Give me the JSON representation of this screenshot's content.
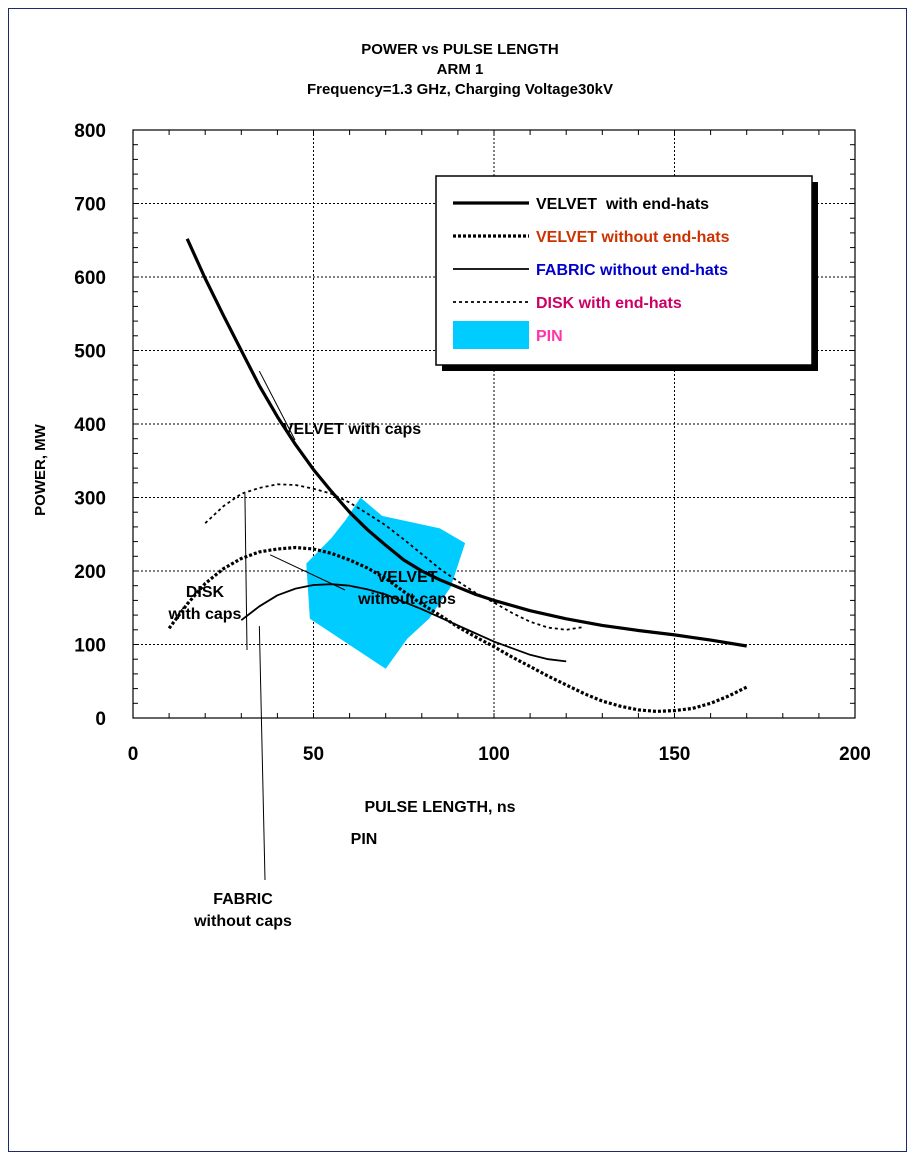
{
  "chart_data": {
    "type": "line",
    "title_lines": [
      "POWER vs PULSE LENGTH",
      "ARM 1",
      "Frequency=1.3 GHz, Charging Voltage30kV"
    ],
    "xlabel": "PULSE LENGTH, ns",
    "ylabel": "POWER, MW",
    "xlim": [
      0,
      200
    ],
    "ylim": [
      0,
      800
    ],
    "xticks": [
      "0",
      "50",
      "100",
      "150",
      "200"
    ],
    "yticks": [
      "0",
      "100",
      "200",
      "300",
      "400",
      "500",
      "600",
      "700",
      "800"
    ],
    "grid": true,
    "legend_position": "top-right",
    "legend": [
      {
        "label": "VELVET  with end-hats",
        "color": "#000000",
        "style": "solid-thick"
      },
      {
        "label": "VELVET without end-hats",
        "color": "#cc3300",
        "style": "dashed-thick"
      },
      {
        "label": "FABRIC without end-hats",
        "color": "#0000cc",
        "style": "solid-thin"
      },
      {
        "label": "DISK with end-hats",
        "color": "#cc0066",
        "style": "dashed-thin"
      },
      {
        "label": "PIN",
        "color": "#ff33aa",
        "style": "area"
      }
    ],
    "series": [
      {
        "name": "VELVET  with end-hats",
        "style": "solid-thick",
        "points": [
          [
            15,
            652
          ],
          [
            20,
            598
          ],
          [
            25,
            548
          ],
          [
            30,
            500
          ],
          [
            35,
            452
          ],
          [
            40,
            410
          ],
          [
            45,
            372
          ],
          [
            50,
            338
          ],
          [
            55,
            308
          ],
          [
            60,
            280
          ],
          [
            65,
            256
          ],
          [
            70,
            235
          ],
          [
            75,
            215
          ],
          [
            80,
            200
          ],
          [
            85,
            188
          ],
          [
            90,
            178
          ],
          [
            95,
            168
          ],
          [
            100,
            160
          ],
          [
            110,
            146
          ],
          [
            120,
            135
          ],
          [
            130,
            126
          ],
          [
            140,
            119
          ],
          [
            150,
            113
          ],
          [
            160,
            106
          ],
          [
            170,
            98
          ]
        ]
      },
      {
        "name": "VELVET without end-hats",
        "style": "dashed-thick",
        "points": [
          [
            10,
            122
          ],
          [
            15,
            155
          ],
          [
            20,
            183
          ],
          [
            25,
            203
          ],
          [
            30,
            217
          ],
          [
            35,
            226
          ],
          [
            40,
            230
          ],
          [
            45,
            232
          ],
          [
            50,
            230
          ],
          [
            55,
            224
          ],
          [
            60,
            215
          ],
          [
            65,
            204
          ],
          [
            70,
            190
          ],
          [
            75,
            172
          ],
          [
            80,
            155
          ],
          [
            85,
            140
          ],
          [
            90,
            124
          ],
          [
            95,
            110
          ],
          [
            100,
            97
          ],
          [
            105,
            83
          ],
          [
            110,
            70
          ],
          [
            115,
            57
          ],
          [
            120,
            45
          ],
          [
            125,
            33
          ],
          [
            130,
            23
          ],
          [
            135,
            16
          ],
          [
            140,
            11
          ],
          [
            145,
            9
          ],
          [
            150,
            10
          ],
          [
            155,
            13
          ],
          [
            160,
            20
          ],
          [
            165,
            30
          ],
          [
            170,
            42
          ]
        ]
      },
      {
        "name": "FABRIC without end-hats",
        "style": "solid-thin",
        "points": [
          [
            30,
            133
          ],
          [
            35,
            152
          ],
          [
            40,
            167
          ],
          [
            45,
            176
          ],
          [
            50,
            181
          ],
          [
            55,
            182
          ],
          [
            60,
            180
          ],
          [
            65,
            175
          ],
          [
            70,
            168
          ],
          [
            75,
            158
          ],
          [
            80,
            148
          ],
          [
            85,
            137
          ],
          [
            90,
            126
          ],
          [
            95,
            115
          ],
          [
            100,
            104
          ],
          [
            105,
            95
          ],
          [
            110,
            86
          ],
          [
            115,
            80
          ],
          [
            120,
            77
          ]
        ]
      },
      {
        "name": "DISK with end-hats",
        "style": "dashed-thin",
        "points": [
          [
            20,
            265
          ],
          [
            25,
            288
          ],
          [
            30,
            305
          ],
          [
            35,
            313
          ],
          [
            40,
            318
          ],
          [
            45,
            317
          ],
          [
            50,
            312
          ],
          [
            55,
            305
          ],
          [
            60,
            293
          ],
          [
            65,
            278
          ],
          [
            70,
            262
          ],
          [
            75,
            243
          ],
          [
            80,
            223
          ],
          [
            85,
            203
          ],
          [
            90,
            186
          ],
          [
            95,
            170
          ],
          [
            100,
            157
          ],
          [
            105,
            143
          ],
          [
            110,
            131
          ],
          [
            115,
            123
          ],
          [
            120,
            120
          ],
          [
            125,
            124
          ]
        ]
      }
    ],
    "pin_region": [
      [
        48,
        210
      ],
      [
        55,
        245
      ],
      [
        59,
        270
      ],
      [
        63,
        300
      ],
      [
        69,
        275
      ],
      [
        85,
        258
      ],
      [
        92,
        238
      ],
      [
        88,
        178
      ],
      [
        82,
        135
      ],
      [
        76,
        108
      ],
      [
        70,
        67
      ],
      [
        49,
        135
      ]
    ],
    "annotations": [
      {
        "text": "VELVET with caps",
        "lines": [
          "VELVET with caps"
        ],
        "anchor": [
          35,
          485
        ]
      },
      {
        "text": "DISK with caps",
        "lines": [
          "DISK",
          "with caps"
        ],
        "anchor": [
          31,
          307
        ]
      },
      {
        "text": "VELVET without caps",
        "lines": [
          "VELVET",
          "without caps"
        ],
        "anchor": [
          38,
          225
        ]
      },
      {
        "text": "PIN",
        "lines": [
          "PIN"
        ],
        "anchor": [
          68,
          125
        ]
      },
      {
        "text": "FABRIC without caps",
        "lines": [
          "FABRIC",
          "without caps"
        ],
        "anchor": [
          35,
          130
        ]
      }
    ]
  }
}
